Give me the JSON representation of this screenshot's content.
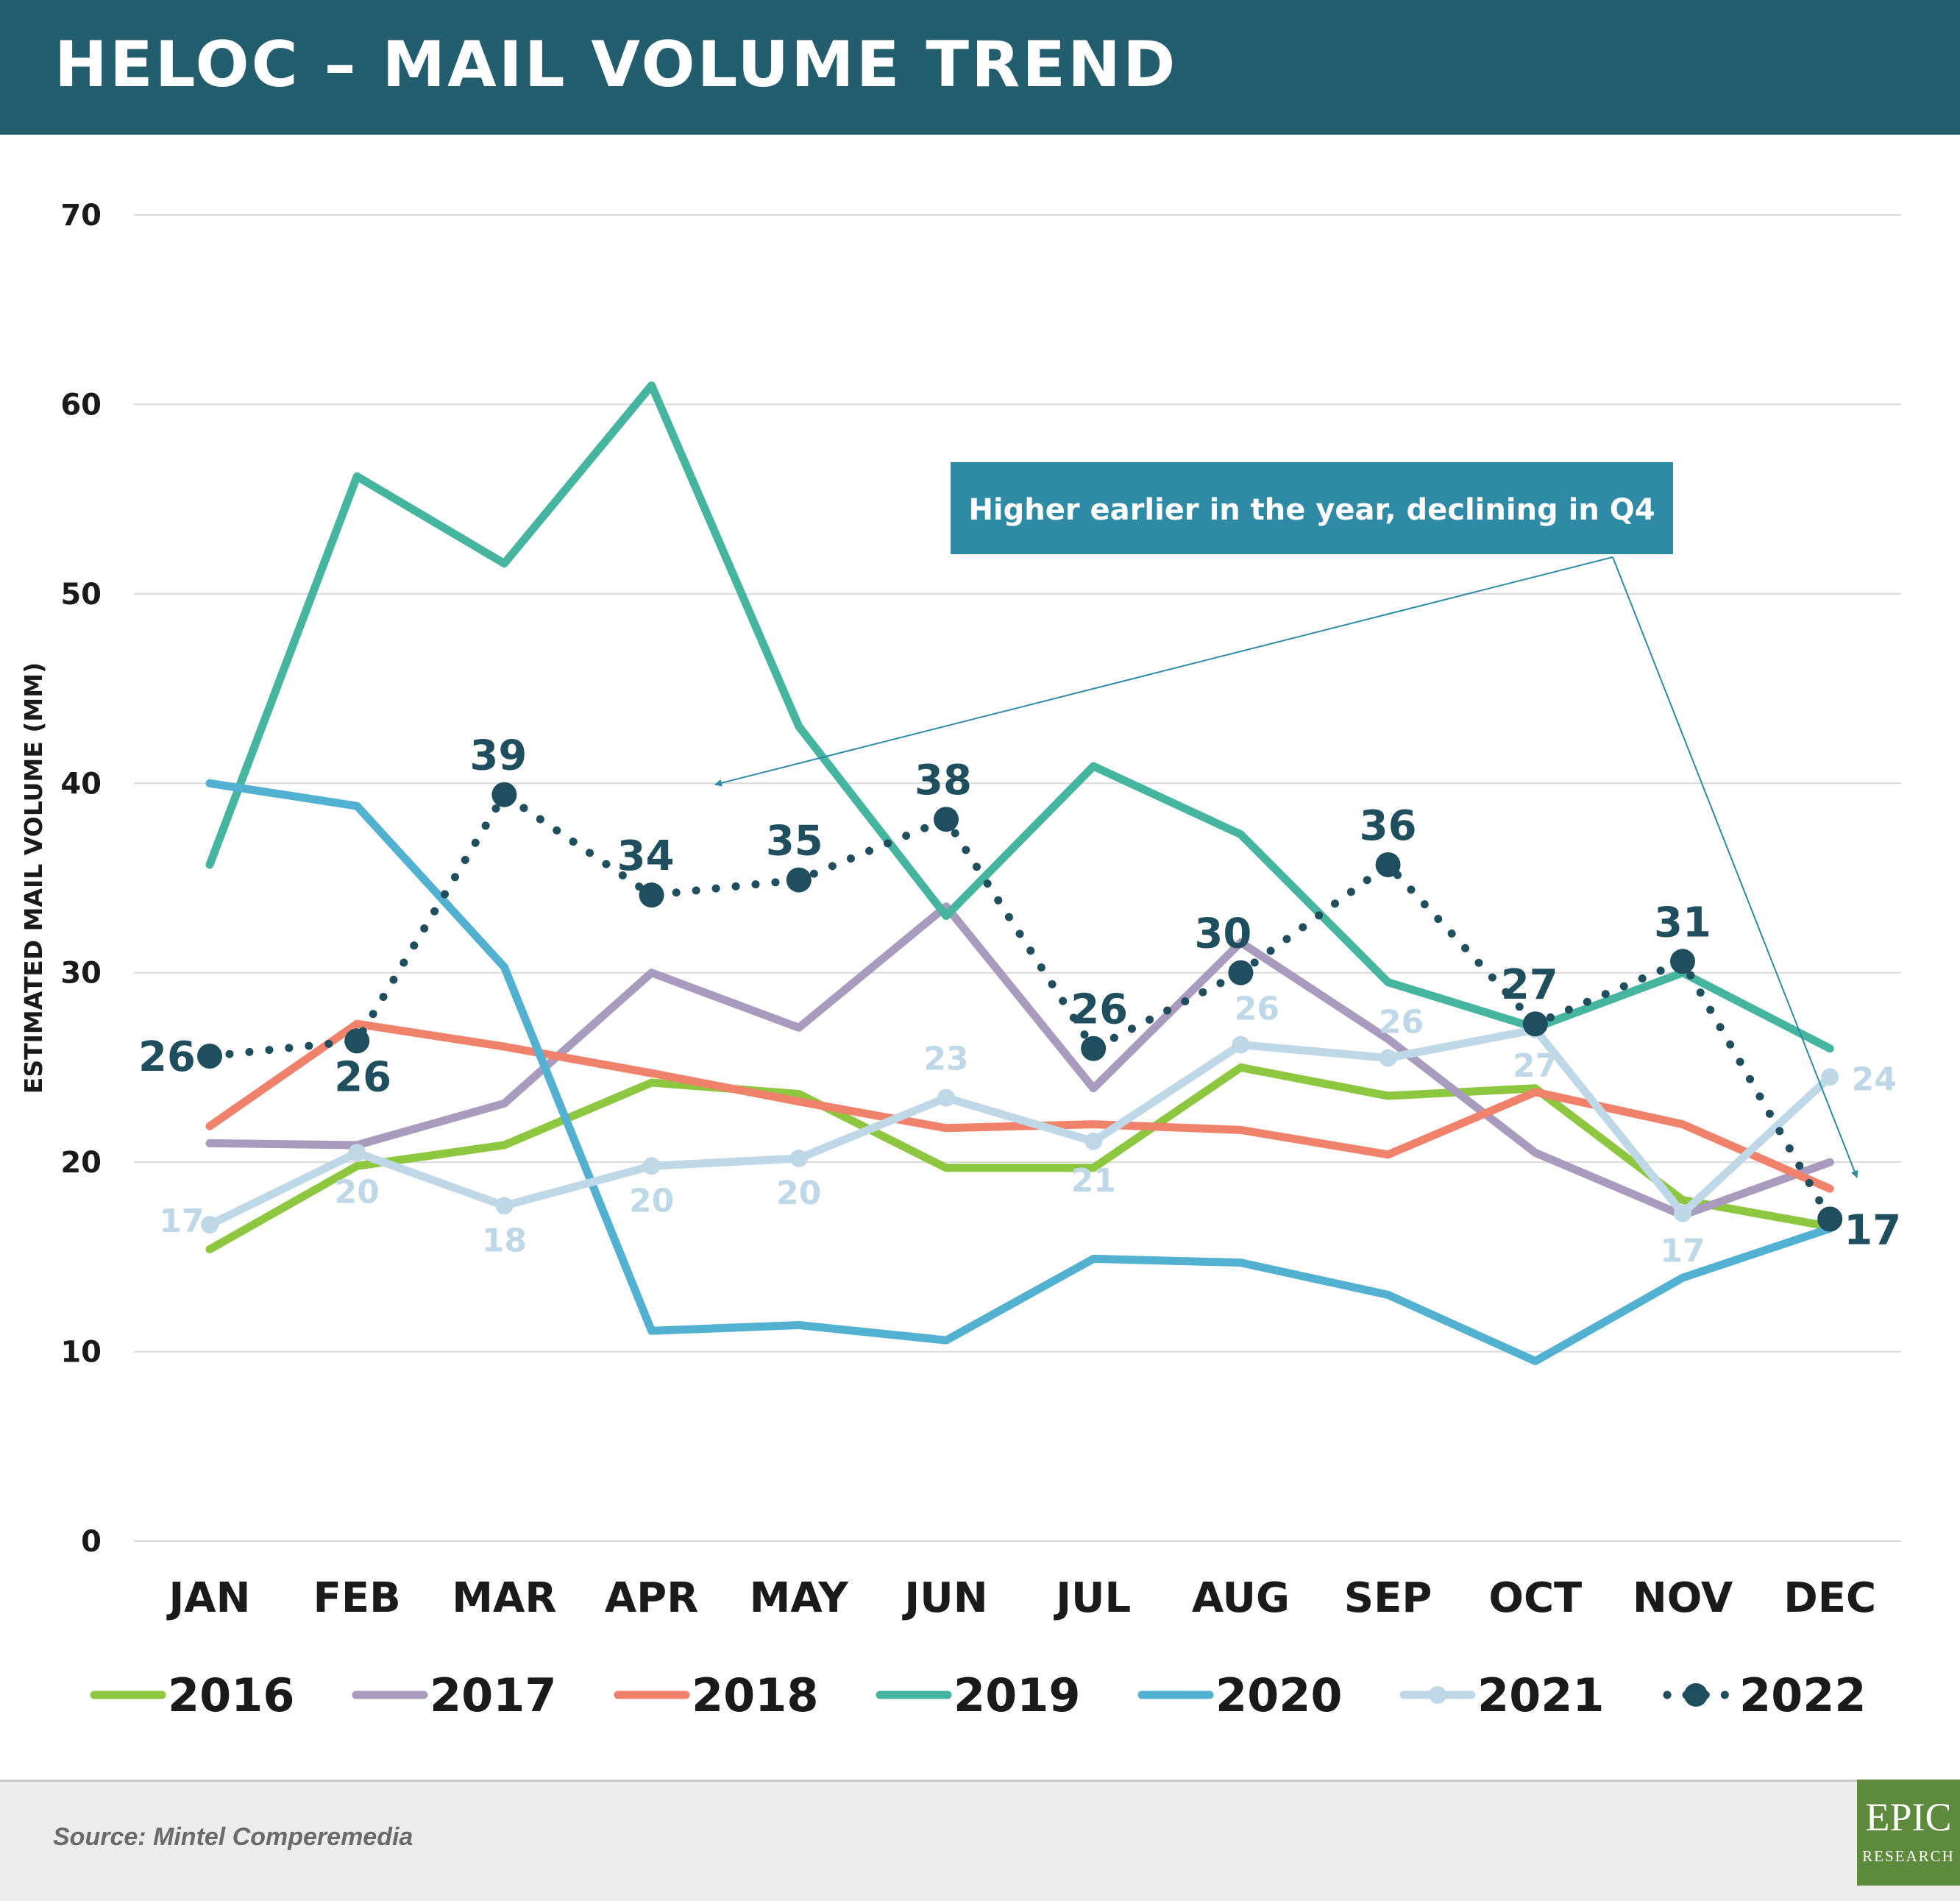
{
  "header": {
    "title": "HELOC – MAIL VOLUME TREND"
  },
  "footer": {
    "source": "Source: Mintel Comperemedia"
  },
  "logo": {
    "main": "EPIC",
    "sub": "RESEARCH"
  },
  "chart_data": {
    "type": "line",
    "title": "HELOC – MAIL VOLUME TREND",
    "ylabel": "ESTIMATED MAIL VOLUME (MM)",
    "xlabel": "",
    "ylim": [
      0,
      70
    ],
    "yticks": [
      0,
      10,
      20,
      30,
      40,
      50,
      60,
      70
    ],
    "grid": true,
    "legend_position": "bottom",
    "categories": [
      "JAN",
      "FEB",
      "MAR",
      "APR",
      "MAY",
      "JUN",
      "JUL",
      "AUG",
      "SEP",
      "OCT",
      "NOV",
      "DEC"
    ],
    "series": [
      {
        "name": "2016",
        "color": "#8dc63f",
        "style": "solid",
        "values": [
          15.4,
          19.8,
          20.9,
          24.2,
          23.6,
          19.7,
          19.7,
          25.0,
          23.5,
          23.9,
          18.0,
          16.6
        ]
      },
      {
        "name": "2017",
        "color": "#a99bbd",
        "style": "solid",
        "values": [
          21.0,
          20.9,
          23.1,
          30.0,
          27.1,
          33.5,
          23.9,
          31.6,
          26.5,
          20.5,
          17.2,
          20.0
        ]
      },
      {
        "name": "2018",
        "color": "#f0826b",
        "style": "solid",
        "values": [
          21.9,
          27.3,
          26.1,
          24.7,
          23.2,
          21.8,
          22.0,
          21.7,
          20.4,
          23.7,
          22.0,
          18.6
        ]
      },
      {
        "name": "2019",
        "color": "#46b5a0",
        "style": "solid",
        "values": [
          35.7,
          56.2,
          51.6,
          61.0,
          43.0,
          33.0,
          40.9,
          37.3,
          29.5,
          27.1,
          30.0,
          26.0
        ]
      },
      {
        "name": "2020",
        "color": "#52b0d0",
        "style": "solid",
        "values": [
          40.0,
          38.8,
          30.3,
          11.1,
          11.4,
          10.6,
          14.9,
          14.7,
          13.0,
          9.5,
          13.9,
          16.5
        ]
      },
      {
        "name": "2021",
        "color": "#bfd8e8",
        "style": "solid-markers",
        "values": [
          16.7,
          20.5,
          17.7,
          19.8,
          20.2,
          23.4,
          21.1,
          26.2,
          25.5,
          27.0,
          17.3,
          24.5
        ],
        "labels": [
          "17",
          "20",
          "18",
          "20",
          "20",
          "23",
          "21",
          "26",
          "26",
          "27",
          "17",
          "24"
        ]
      },
      {
        "name": "2022",
        "color": "#1f4e5f",
        "style": "dotted-markers",
        "values": [
          25.6,
          26.4,
          39.4,
          34.1,
          34.9,
          38.1,
          26.0,
          30.0,
          35.7,
          27.3,
          30.6,
          17.0
        ],
        "labels": [
          "26",
          "26",
          "39",
          "34",
          "35",
          "38",
          "26",
          "30",
          "36",
          "27",
          "31",
          "17"
        ]
      }
    ],
    "annotation": {
      "text": "Higher earlier in the year, declining in Q4"
    }
  }
}
